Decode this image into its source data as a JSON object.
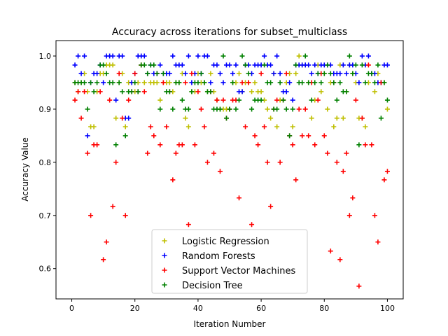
{
  "chart_data": {
    "type": "scatter",
    "title": "Accuracy across iterations for subset_multiclass",
    "xlabel": "Iteration Number",
    "ylabel": "Accuracy Value",
    "xlim": [
      -5,
      105
    ],
    "ylim": [
      0.543,
      1.029
    ],
    "xticks": [
      0,
      20,
      40,
      60,
      80,
      100
    ],
    "yticks": [
      0.6,
      0.7,
      0.8,
      0.9,
      1.0
    ],
    "xtick_labels": [
      "0",
      "20",
      "40",
      "60",
      "80",
      "100"
    ],
    "ytick_labels": [
      "0.6",
      "0.7",
      "0.8",
      "0.9",
      "1.0"
    ],
    "grid": false,
    "marker": "+",
    "legend_position": "lower center",
    "series": [
      {
        "name": "Logistic Regression",
        "color": "#bfbf00",
        "x": [
          1,
          2,
          3,
          4,
          5,
          6,
          7,
          8,
          9,
          10,
          11,
          12,
          13,
          14,
          15,
          16,
          17,
          18,
          19,
          20,
          21,
          22,
          23,
          24,
          25,
          26,
          27,
          28,
          29,
          30,
          31,
          32,
          33,
          34,
          35,
          36,
          37,
          38,
          39,
          40,
          41,
          42,
          43,
          44,
          45,
          46,
          47,
          48,
          49,
          50,
          51,
          52,
          53,
          54,
          55,
          56,
          57,
          58,
          59,
          60,
          61,
          62,
          63,
          64,
          65,
          66,
          67,
          68,
          69,
          70,
          71,
          72,
          73,
          74,
          75,
          76,
          77,
          78,
          79,
          80,
          81,
          82,
          83,
          84,
          85,
          86,
          87,
          88,
          89,
          90,
          91,
          92,
          93,
          94,
          95,
          96,
          97,
          98,
          99,
          100
        ],
        "y": [
          0.95,
          0.933,
          0.95,
          0.967,
          0.933,
          0.867,
          0.867,
          0.933,
          0.967,
          0.967,
          0.983,
          0.983,
          0.983,
          0.883,
          0.95,
          0.967,
          0.867,
          0.95,
          0.95,
          0.933,
          0.95,
          0.983,
          0.95,
          0.967,
          0.95,
          0.95,
          0.95,
          0.917,
          0.95,
          0.95,
          0.95,
          0.933,
          0.95,
          0.95,
          0.967,
          0.883,
          0.867,
          0.933,
          0.933,
          0.967,
          0.95,
          0.95,
          0.933,
          0.967,
          0.933,
          0.917,
          0.9,
          0.9,
          0.9,
          0.9,
          0.95,
          0.95,
          0.967,
          0.933,
          0.95,
          0.95,
          0.933,
          0.95,
          0.933,
          0.933,
          0.917,
          0.9,
          0.883,
          0.967,
          0.867,
          0.917,
          0.917,
          0.95,
          0.967,
          0.867,
          0.967,
          1.0,
          0.983,
          0.983,
          0.95,
          0.883,
          0.917,
          0.983,
          0.933,
          0.967,
          0.9,
          0.95,
          0.867,
          0.883,
          0.983,
          0.883,
          0.933,
          0.983,
          0.967,
          0.95,
          0.883,
          0.883,
          0.867,
          0.95,
          0.967,
          0.933,
          0.967,
          0.95,
          0.95,
          0.9
        ]
      },
      {
        "name": "Random Forests",
        "color": "#0000ff",
        "x": [
          1,
          2,
          3,
          4,
          5,
          6,
          7,
          8,
          9,
          10,
          11,
          12,
          13,
          14,
          15,
          16,
          17,
          18,
          19,
          20,
          21,
          22,
          23,
          24,
          25,
          26,
          27,
          28,
          29,
          30,
          31,
          32,
          33,
          34,
          35,
          36,
          37,
          38,
          39,
          40,
          41,
          42,
          43,
          44,
          45,
          46,
          47,
          48,
          49,
          50,
          51,
          52,
          53,
          54,
          55,
          56,
          57,
          58,
          59,
          60,
          61,
          62,
          63,
          64,
          65,
          66,
          67,
          68,
          69,
          70,
          71,
          72,
          73,
          74,
          75,
          76,
          77,
          78,
          79,
          80,
          81,
          82,
          83,
          84,
          85,
          86,
          87,
          88,
          89,
          90,
          91,
          92,
          93,
          94,
          95,
          96,
          97,
          98,
          99,
          100
        ],
        "y": [
          0.983,
          1.0,
          0.967,
          1.0,
          0.85,
          0.95,
          0.967,
          0.967,
          0.983,
          0.95,
          1.0,
          1.0,
          1.0,
          0.917,
          1.0,
          1.0,
          0.883,
          0.883,
          0.95,
          0.967,
          1.0,
          1.0,
          1.0,
          0.967,
          0.983,
          0.967,
          0.967,
          0.983,
          0.967,
          0.967,
          0.967,
          1.0,
          0.983,
          0.983,
          0.983,
          0.967,
          1.0,
          0.95,
          0.967,
          1.0,
          0.967,
          1.0,
          1.0,
          0.95,
          0.983,
          0.983,
          0.967,
          0.95,
          0.983,
          0.983,
          0.967,
          0.983,
          0.933,
          0.933,
          0.983,
          0.983,
          0.967,
          0.983,
          0.983,
          0.983,
          1.0,
          0.983,
          0.983,
          0.967,
          1.0,
          0.967,
          0.933,
          0.933,
          0.95,
          0.917,
          0.983,
          0.983,
          0.983,
          0.983,
          0.983,
          0.967,
          0.983,
          0.967,
          0.983,
          0.983,
          0.983,
          0.983,
          0.967,
          0.967,
          0.967,
          0.983,
          0.967,
          0.983,
          0.983,
          0.967,
          0.95,
          1.0,
          0.983,
          1.0,
          0.967,
          0.967,
          0.95,
          0.95,
          0.983,
          0.983
        ]
      },
      {
        "name": "Support Vector Machines",
        "color": "#ff0000",
        "x": [
          1,
          2,
          3,
          4,
          5,
          6,
          7,
          8,
          9,
          10,
          11,
          12,
          13,
          14,
          15,
          16,
          17,
          18,
          19,
          20,
          21,
          22,
          23,
          24,
          25,
          26,
          27,
          28,
          29,
          30,
          31,
          32,
          33,
          34,
          35,
          36,
          37,
          38,
          39,
          40,
          41,
          42,
          43,
          44,
          45,
          46,
          47,
          48,
          49,
          50,
          51,
          52,
          53,
          54,
          55,
          56,
          57,
          58,
          59,
          60,
          61,
          62,
          63,
          64,
          65,
          66,
          67,
          68,
          69,
          70,
          71,
          72,
          73,
          74,
          75,
          76,
          77,
          78,
          79,
          80,
          81,
          82,
          83,
          84,
          85,
          86,
          87,
          88,
          89,
          90,
          91,
          92,
          93,
          94,
          95,
          96,
          97,
          98,
          99,
          100
        ],
        "y": [
          0.917,
          0.933,
          0.883,
          0.933,
          0.817,
          0.7,
          0.833,
          0.833,
          0.933,
          0.617,
          0.65,
          0.917,
          0.717,
          0.8,
          0.967,
          0.883,
          0.7,
          0.917,
          0.933,
          0.967,
          0.933,
          0.983,
          0.933,
          0.817,
          0.867,
          0.85,
          0.967,
          0.833,
          0.95,
          0.867,
          0.933,
          0.767,
          0.817,
          0.833,
          0.833,
          0.95,
          0.683,
          0.967,
          0.833,
          0.933,
          0.9,
          0.867,
          0.8,
          0.933,
          0.817,
          0.917,
          0.783,
          0.917,
          0.883,
          0.9,
          0.917,
          0.917,
          0.733,
          0.95,
          0.867,
          0.95,
          0.683,
          0.85,
          0.833,
          0.967,
          0.867,
          0.8,
          0.717,
          0.9,
          0.917,
          0.8,
          0.917,
          0.967,
          0.85,
          0.833,
          0.767,
          0.9,
          0.85,
          0.9,
          0.85,
          0.95,
          0.833,
          0.917,
          0.967,
          0.85,
          0.817,
          0.633,
          0.95,
          0.8,
          0.617,
          0.783,
          0.817,
          0.7,
          0.733,
          0.917,
          0.567,
          0.883,
          0.833,
          0.983,
          0.833,
          0.7,
          0.65,
          0.95,
          0.767,
          0.783
        ]
      },
      {
        "name": "Decision Tree",
        "color": "#008000",
        "x": [
          1,
          2,
          3,
          4,
          5,
          6,
          7,
          8,
          9,
          10,
          11,
          12,
          13,
          14,
          15,
          16,
          17,
          18,
          19,
          20,
          21,
          22,
          23,
          24,
          25,
          26,
          27,
          28,
          29,
          30,
          31,
          32,
          33,
          34,
          35,
          36,
          37,
          38,
          39,
          40,
          41,
          42,
          43,
          44,
          45,
          46,
          47,
          48,
          49,
          50,
          51,
          52,
          53,
          54,
          55,
          56,
          57,
          58,
          59,
          60,
          61,
          62,
          63,
          64,
          65,
          66,
          67,
          68,
          69,
          70,
          71,
          72,
          73,
          74,
          75,
          76,
          77,
          78,
          79,
          80,
          81,
          82,
          83,
          84,
          85,
          86,
          87,
          88,
          89,
          90,
          91,
          92,
          93,
          94,
          95,
          96,
          97,
          98,
          99,
          100
        ],
        "y": [
          0.95,
          0.95,
          0.95,
          0.95,
          0.9,
          0.95,
          0.933,
          0.95,
          0.983,
          0.983,
          0.967,
          0.95,
          0.95,
          0.833,
          0.95,
          0.933,
          0.85,
          0.933,
          0.933,
          0.95,
          0.933,
          0.983,
          0.983,
          0.967,
          0.983,
          0.983,
          0.967,
          0.9,
          0.967,
          0.933,
          0.933,
          0.9,
          0.95,
          0.95,
          0.917,
          0.9,
          0.9,
          0.933,
          0.95,
          0.95,
          0.967,
          0.95,
          0.933,
          0.933,
          0.9,
          0.9,
          0.9,
          1.0,
          0.883,
          0.9,
          0.95,
          0.9,
          0.917,
          1.0,
          0.983,
          0.967,
          0.9,
          0.917,
          0.917,
          0.917,
          0.983,
          0.95,
          0.95,
          0.9,
          0.9,
          0.95,
          0.917,
          0.9,
          0.85,
          0.9,
          0.983,
          0.95,
          0.95,
          1.0,
          0.95,
          0.917,
          0.95,
          0.967,
          0.95,
          0.967,
          0.983,
          0.967,
          0.95,
          0.917,
          0.95,
          0.933,
          0.933,
          1.0,
          0.967,
          0.983,
          0.833,
          0.983,
          0.95,
          0.967,
          0.967,
          0.95,
          0.983,
          0.883,
          0.95,
          0.917
        ]
      }
    ]
  }
}
